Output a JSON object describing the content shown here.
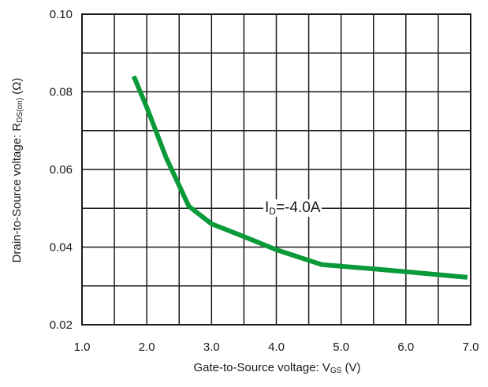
{
  "chart_data": {
    "type": "line",
    "title": "",
    "xlabel": {
      "prefix": "Gate-to-Source voltage: V",
      "sub": "GS",
      "suffix": " (V)"
    },
    "ylabel": {
      "prefix": "Drain-to-Source voltage: R",
      "sub": "DS(on)",
      "suffix": " (Ω)"
    },
    "xlim": [
      1.0,
      7.0
    ],
    "ylim": [
      0.02,
      0.1
    ],
    "x_ticks": [
      1.0,
      2.0,
      3.0,
      4.0,
      5.0,
      6.0,
      7.0
    ],
    "x_tick_labels": [
      "1.0",
      "2.0",
      "3.0",
      "4.0",
      "5.0",
      "6.0",
      "7.0"
    ],
    "y_ticks": [
      0.02,
      0.04,
      0.06,
      0.08,
      0.1
    ],
    "y_tick_labels": [
      "0.02",
      "0.04",
      "0.06",
      "0.08",
      "0.10"
    ],
    "grid": true,
    "grid_x_step": 0.5,
    "grid_y_step": 0.01,
    "line_color": "#0a9a3a",
    "series": [
      {
        "x": [
          1.8,
          2.0,
          2.3,
          2.65,
          3.0,
          3.5,
          4.0,
          4.7,
          5.5,
          6.3,
          6.95
        ],
        "y": [
          0.084,
          0.076,
          0.063,
          0.0505,
          0.046,
          0.0427,
          0.0393,
          0.0355,
          0.0344,
          0.0332,
          0.0322
        ]
      }
    ],
    "annotation": {
      "prefix": "I",
      "sub": "D",
      "suffix": "=-4.0A"
    }
  }
}
